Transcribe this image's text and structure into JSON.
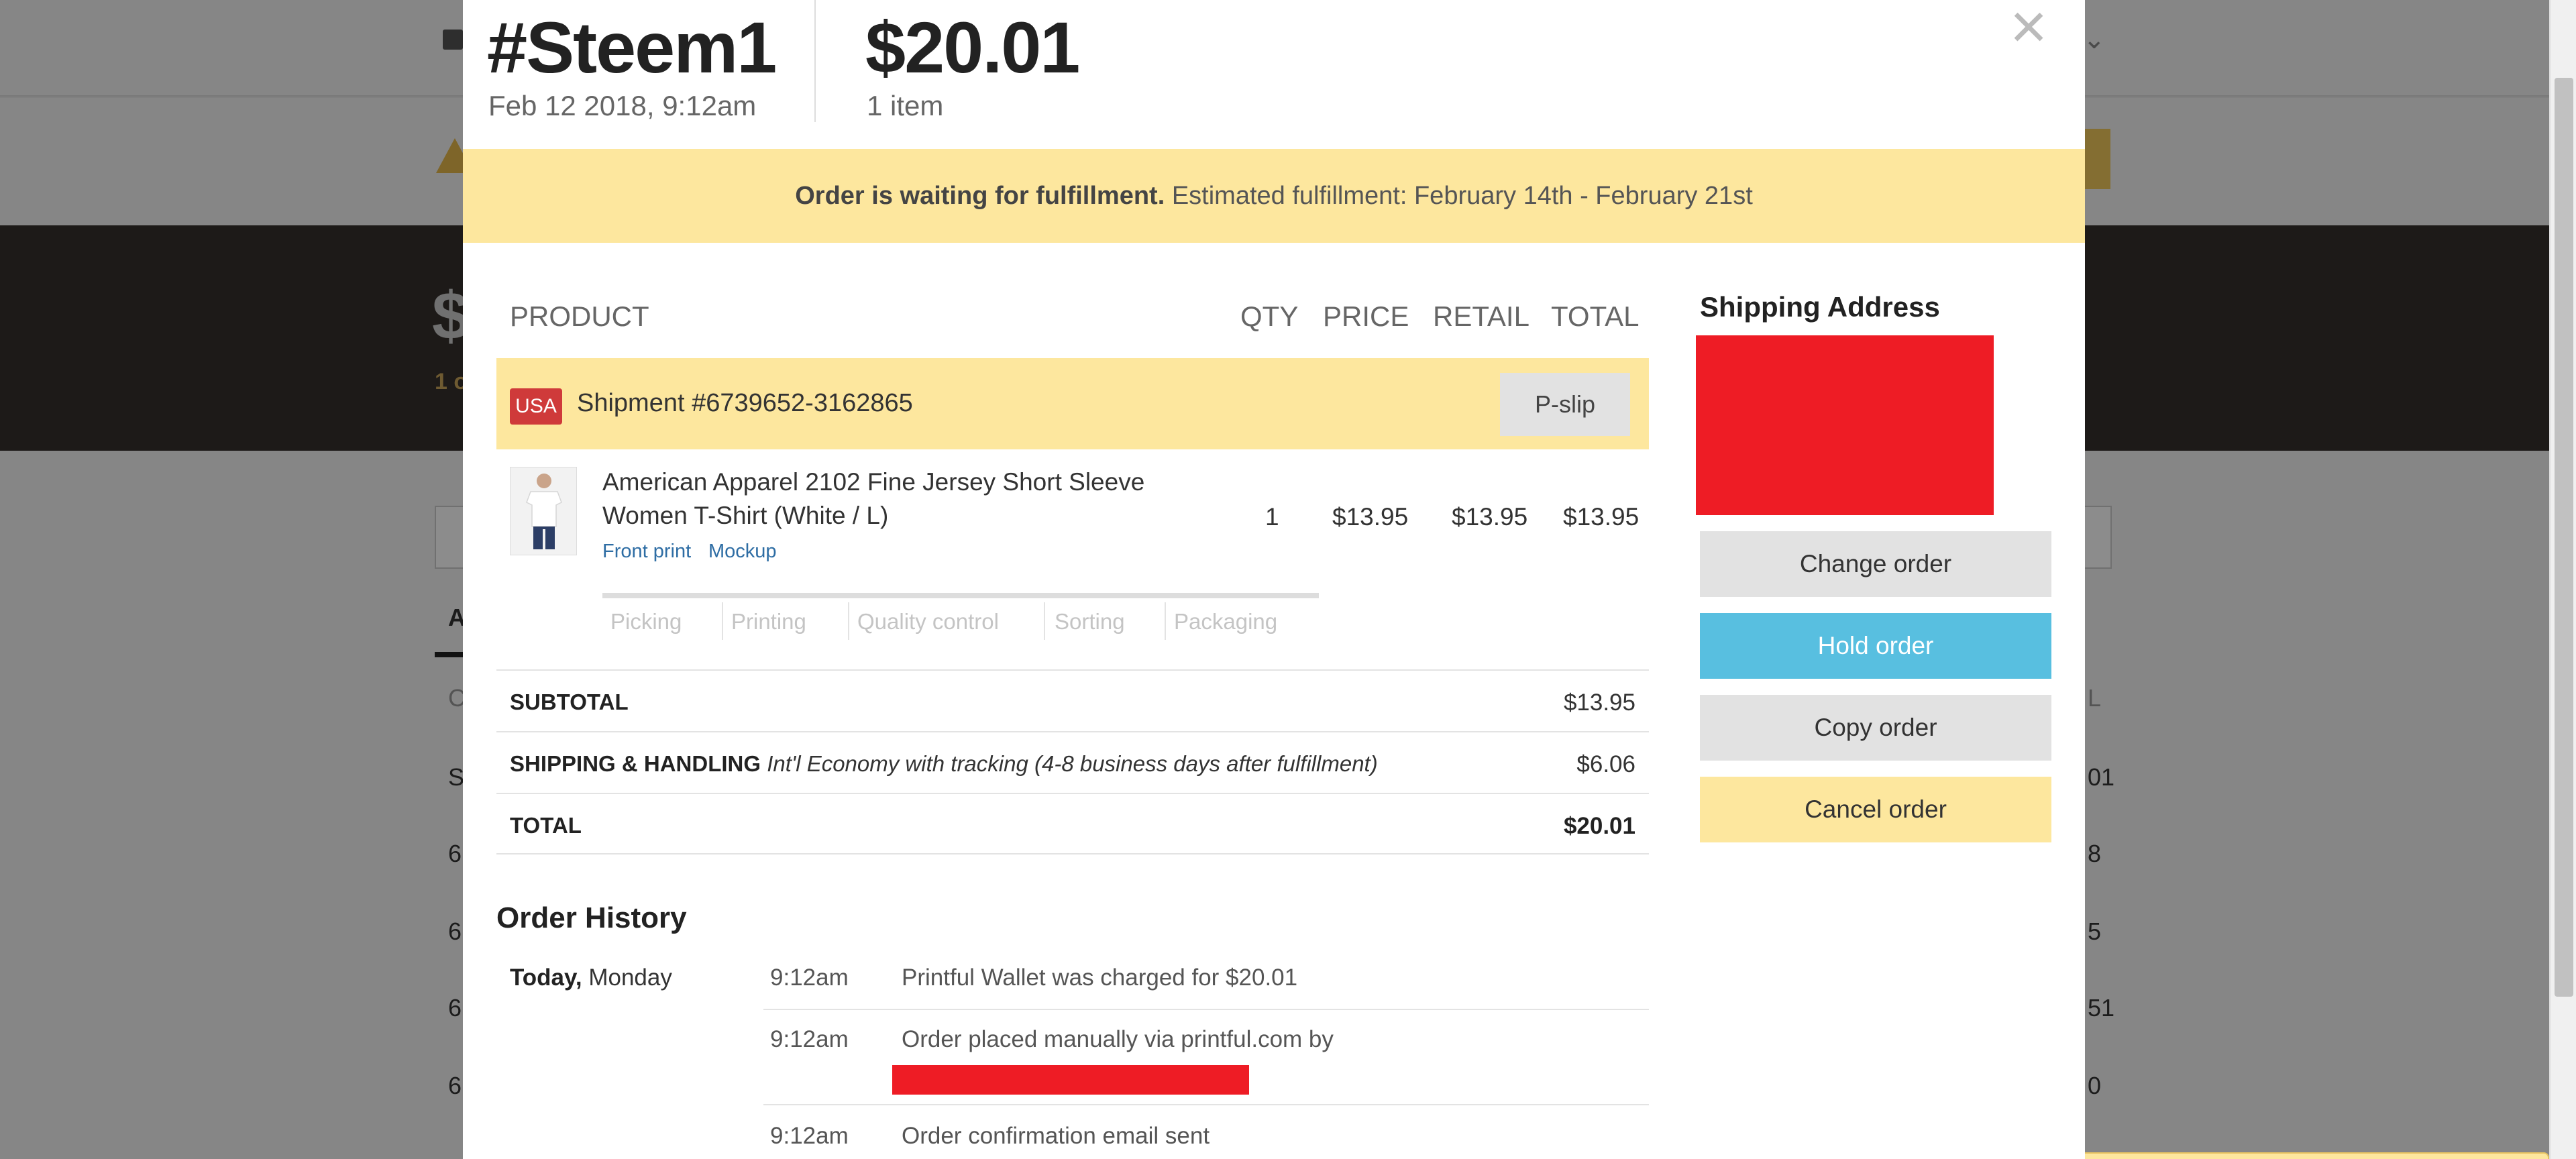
{
  "background": {
    "amount_glyph": "$",
    "count_glyph": "1 o",
    "tab_initial": "A",
    "row_initials": [
      "C",
      "S",
      "6",
      "6",
      "6",
      "6"
    ],
    "row_suffixes": [
      "L",
      "01",
      "8",
      "5",
      "51",
      "0"
    ]
  },
  "order": {
    "number": "#Steem1",
    "date": "Feb 12 2018, 9:12am",
    "total": "$20.01",
    "items_count": "1 item",
    "close_icon": "×"
  },
  "status": {
    "bold": "Order is waiting for fulfillment.",
    "text": " Estimated fulfillment: February 14th - February 21st"
  },
  "table": {
    "headers": {
      "product": "PRODUCT",
      "qty": "QTY",
      "price": "PRICE",
      "retail": "RETAIL",
      "total": "TOTAL"
    },
    "shipment": {
      "country": "USA",
      "label": "Shipment #6739652-3162865",
      "pslip_label": "P-slip"
    },
    "product": {
      "title": "American Apparel 2102 Fine Jersey Short Sleeve Women T-Shirt (White / L)",
      "link_front": "Front print",
      "link_mockup": "Mockup",
      "qty": "1",
      "price": "$13.95",
      "retail": "$13.95",
      "total": "$13.95"
    },
    "steps": [
      "Picking",
      "Printing",
      "Quality control",
      "Sorting",
      "Packaging"
    ]
  },
  "summary": {
    "subtotal_label": "SUBTOTAL",
    "subtotal_value": "$13.95",
    "shipping_label": "SHIPPING & HANDLING",
    "shipping_desc": "Int'l Economy with tracking (4-8 business days after fulfillment)",
    "shipping_value": "$6.06",
    "total_label": "TOTAL",
    "total_value": "$20.01"
  },
  "history": {
    "title": "Order History",
    "day_bold": "Today,",
    "day_rest": " Monday",
    "entries": [
      {
        "time": "9:12am",
        "text": "Printful Wallet was charged for $20.01"
      },
      {
        "time": "9:12am",
        "text": "Order placed manually via printful.com by"
      },
      {
        "time": "9:12am",
        "text": "Order confirmation email sent"
      }
    ]
  },
  "sidebar": {
    "address_title": "Shipping Address",
    "buttons": {
      "change": "Change order",
      "hold": "Hold order",
      "copy": "Copy order",
      "cancel": "Cancel order"
    }
  },
  "colors": {
    "banner": "#fde79e",
    "hold_button": "#58bfe0",
    "usa_badge": "#cf3a3a",
    "redaction": "#ee1c25"
  }
}
